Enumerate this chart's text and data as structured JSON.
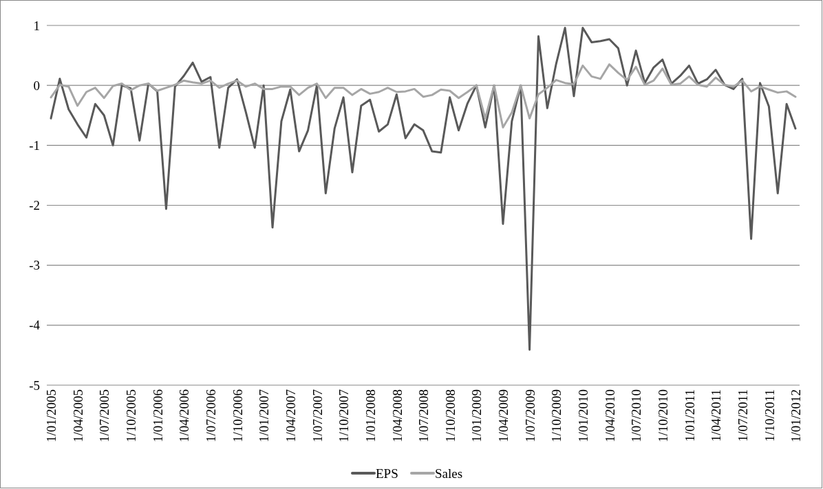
{
  "chart_data": {
    "type": "line",
    "categories": [
      "1/01/2005",
      null,
      null,
      "1/04/2005",
      null,
      null,
      "1/07/2005",
      null,
      null,
      "1/10/2005",
      null,
      null,
      "1/01/2006",
      null,
      null,
      "1/04/2006",
      null,
      null,
      "1/07/2006",
      null,
      null,
      "1/10/2006",
      null,
      null,
      "1/01/2007",
      null,
      null,
      "1/04/2007",
      null,
      null,
      "1/07/2007",
      null,
      null,
      "1/10/2007",
      null,
      null,
      "1/01/2008",
      null,
      null,
      "1/04/2008",
      null,
      null,
      "1/07/2008",
      null,
      null,
      "1/10/2008",
      null,
      null,
      "1/01/2009",
      null,
      null,
      "1/04/2009",
      null,
      null,
      "1/07/2009",
      null,
      null,
      "1/10/2009",
      null,
      null,
      "1/01/2010",
      null,
      null,
      "1/04/2010",
      null,
      null,
      "1/07/2010",
      null,
      null,
      "1/10/2010",
      null,
      null,
      "1/01/2011",
      null,
      null,
      "1/04/2011",
      null,
      null,
      "1/07/2011",
      null,
      null,
      "1/10/2011",
      null,
      null,
      "1/01/2012"
    ],
    "series": [
      {
        "name": "EPS",
        "color": "#595959",
        "values": [
          -0.55,
          0.11,
          -0.4,
          -0.65,
          -0.87,
          -0.31,
          -0.5,
          -1.0,
          0.0,
          -0.05,
          -0.92,
          0.03,
          -0.1,
          -2.06,
          -0.02,
          0.16,
          0.38,
          0.06,
          0.14,
          -1.04,
          -0.04,
          0.1,
          -0.45,
          -1.04,
          0.0,
          -2.37,
          -0.6,
          -0.07,
          -1.1,
          -0.75,
          0.0,
          -1.8,
          -0.72,
          -0.2,
          -1.45,
          -0.34,
          -0.24,
          -0.77,
          -0.65,
          -0.15,
          -0.88,
          -0.65,
          -0.75,
          -1.1,
          -1.12,
          -0.2,
          -0.75,
          -0.3,
          0.0,
          -0.7,
          0.0,
          -2.31,
          -0.6,
          0.0,
          -4.41,
          0.82,
          -0.38,
          0.36,
          0.96,
          -0.18,
          0.96,
          0.72,
          0.74,
          0.77,
          0.62,
          0.0,
          0.58,
          0.04,
          0.3,
          0.43,
          0.03,
          0.16,
          0.33,
          0.03,
          0.1,
          0.26,
          0.01,
          -0.06,
          0.11,
          -2.56,
          0.04,
          -0.35,
          -1.8,
          -0.31,
          -0.72
        ]
      },
      {
        "name": "Sales",
        "color": "#a6a6a6",
        "values": [
          -0.2,
          0.01,
          -0.02,
          -0.34,
          -0.11,
          -0.04,
          -0.21,
          -0.01,
          0.03,
          -0.08,
          0.0,
          0.03,
          -0.09,
          -0.04,
          0.01,
          0.08,
          0.05,
          0.03,
          0.08,
          -0.04,
          0.03,
          0.08,
          -0.02,
          0.03,
          -0.06,
          -0.06,
          -0.02,
          -0.02,
          -0.16,
          -0.04,
          0.03,
          -0.21,
          -0.04,
          -0.04,
          -0.16,
          -0.06,
          -0.14,
          -0.11,
          -0.04,
          -0.11,
          -0.1,
          -0.06,
          -0.19,
          -0.16,
          -0.07,
          -0.09,
          -0.21,
          -0.11,
          0.0,
          -0.55,
          0.0,
          -0.7,
          -0.45,
          0.0,
          -0.55,
          -0.15,
          -0.04,
          0.09,
          0.04,
          0.02,
          0.33,
          0.15,
          0.11,
          0.35,
          0.21,
          0.09,
          0.31,
          0.01,
          0.08,
          0.28,
          0.01,
          0.03,
          0.15,
          0.01,
          -0.02,
          0.13,
          0.01,
          -0.02,
          0.08,
          -0.1,
          -0.02,
          -0.07,
          -0.12,
          -0.1,
          -0.19
        ]
      }
    ],
    "ylim": [
      -5,
      1
    ],
    "yticks": [
      -5,
      -4,
      -3,
      -2,
      -1,
      0,
      1
    ],
    "grid": "y",
    "legend": "bottom",
    "marker": "none",
    "line_style": "solid"
  }
}
